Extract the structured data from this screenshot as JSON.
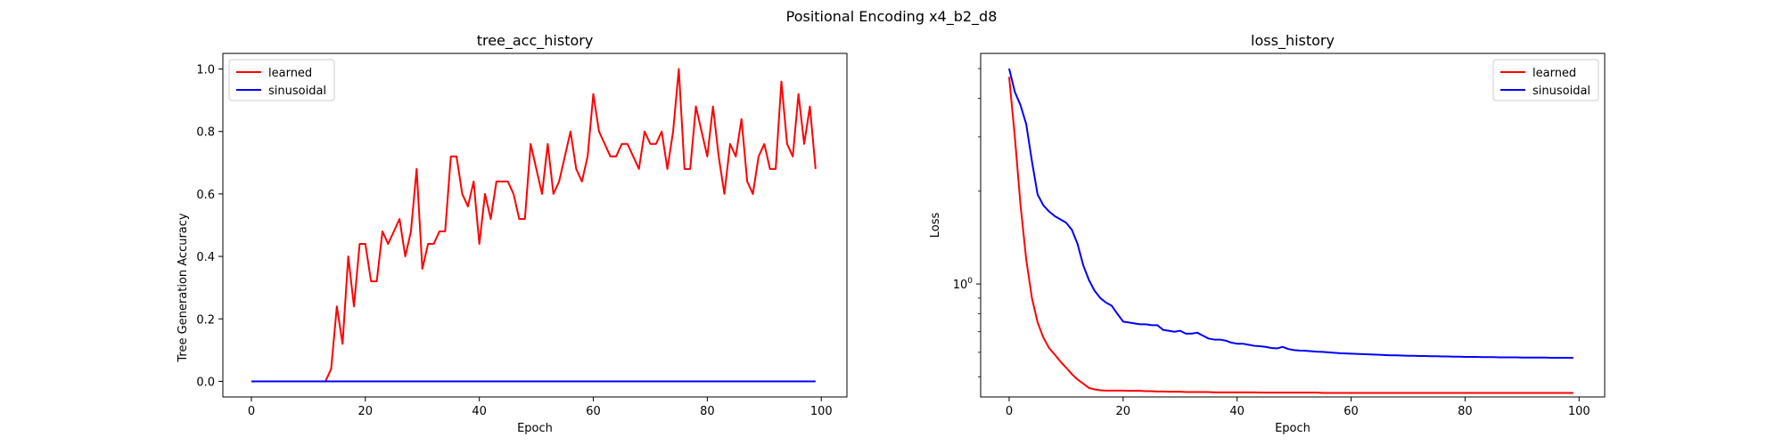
{
  "figure": {
    "suptitle": "Positional Encoding x4_b2_d8"
  },
  "chart_data": [
    {
      "type": "line",
      "title": "tree_acc_history",
      "xlabel": "Epoch",
      "ylabel": "Tree Generation Accuracy",
      "xlim": [
        -5,
        104.5
      ],
      "ylim": [
        -0.05,
        1.05
      ],
      "xticks": [
        0,
        20,
        40,
        60,
        80,
        100
      ],
      "xtick_labels": [
        "0",
        "20",
        "40",
        "60",
        "80",
        "100"
      ],
      "yticks": [
        0.0,
        0.2,
        0.4,
        0.6,
        0.8,
        1.0
      ],
      "ytick_labels": [
        "0.0",
        "0.2",
        "0.4",
        "0.6",
        "0.8",
        "1.0"
      ],
      "yscale": "linear",
      "grid": false,
      "legend": "upper left",
      "series": [
        {
          "name": "learned",
          "color": "#ff0000",
          "x": [
            0,
            1,
            2,
            3,
            4,
            5,
            6,
            7,
            8,
            9,
            10,
            11,
            12,
            13,
            14,
            15,
            16,
            17,
            18,
            19,
            20,
            21,
            22,
            23,
            24,
            25,
            26,
            27,
            28,
            29,
            30,
            31,
            32,
            33,
            34,
            35,
            36,
            37,
            38,
            39,
            40,
            41,
            42,
            43,
            44,
            45,
            46,
            47,
            48,
            49,
            50,
            51,
            52,
            53,
            54,
            55,
            56,
            57,
            58,
            59,
            60,
            61,
            62,
            63,
            64,
            65,
            66,
            67,
            68,
            69,
            70,
            71,
            72,
            73,
            74,
            75,
            76,
            77,
            78,
            79,
            80,
            81,
            82,
            83,
            84,
            85,
            86,
            87,
            88,
            89,
            90,
            91,
            92,
            93,
            94,
            95,
            96,
            97,
            98,
            99
          ],
          "values": [
            0,
            0,
            0,
            0,
            0,
            0,
            0,
            0,
            0,
            0,
            0,
            0,
            0,
            0,
            0.04,
            0.24,
            0.12,
            0.4,
            0.24,
            0.44,
            0.44,
            0.32,
            0.32,
            0.48,
            0.44,
            0.48,
            0.52,
            0.4,
            0.48,
            0.68,
            0.36,
            0.44,
            0.44,
            0.48,
            0.48,
            0.72,
            0.72,
            0.6,
            0.56,
            0.64,
            0.44,
            0.6,
            0.52,
            0.64,
            0.64,
            0.64,
            0.6,
            0.52,
            0.52,
            0.76,
            0.68,
            0.6,
            0.76,
            0.6,
            0.64,
            0.72,
            0.8,
            0.68,
            0.64,
            0.72,
            0.92,
            0.8,
            0.76,
            0.72,
            0.72,
            0.76,
            0.76,
            0.72,
            0.68,
            0.8,
            0.76,
            0.76,
            0.8,
            0.68,
            0.8,
            1.0,
            0.68,
            0.68,
            0.88,
            0.8,
            0.72,
            0.88,
            0.72,
            0.6,
            0.76,
            0.72,
            0.84,
            0.64,
            0.6,
            0.72,
            0.76,
            0.68,
            0.68,
            0.96,
            0.76,
            0.72,
            0.92,
            0.76,
            0.88,
            0.68
          ]
        },
        {
          "name": "sinusoidal",
          "color": "#0000ff",
          "x": [
            0,
            1,
            2,
            3,
            4,
            5,
            6,
            7,
            8,
            9,
            10,
            11,
            12,
            13,
            14,
            15,
            16,
            17,
            18,
            19,
            20,
            21,
            22,
            23,
            24,
            25,
            26,
            27,
            28,
            29,
            30,
            31,
            32,
            33,
            34,
            35,
            36,
            37,
            38,
            39,
            40,
            41,
            42,
            43,
            44,
            45,
            46,
            47,
            48,
            49,
            50,
            51,
            52,
            53,
            54,
            55,
            56,
            57,
            58,
            59,
            60,
            61,
            62,
            63,
            64,
            65,
            66,
            67,
            68,
            69,
            70,
            71,
            72,
            73,
            74,
            75,
            76,
            77,
            78,
            79,
            80,
            81,
            82,
            83,
            84,
            85,
            86,
            87,
            88,
            89,
            90,
            91,
            92,
            93,
            94,
            95,
            96,
            97,
            98,
            99
          ],
          "values": [
            0,
            0,
            0,
            0,
            0,
            0,
            0,
            0,
            0,
            0,
            0,
            0,
            0,
            0,
            0,
            0,
            0,
            0,
            0,
            0,
            0,
            0,
            0,
            0,
            0,
            0,
            0,
            0,
            0,
            0,
            0,
            0,
            0,
            0,
            0,
            0,
            0,
            0,
            0,
            0,
            0,
            0,
            0,
            0,
            0,
            0,
            0,
            0,
            0,
            0,
            0,
            0,
            0,
            0,
            0,
            0,
            0,
            0,
            0,
            0,
            0,
            0,
            0,
            0,
            0,
            0,
            0,
            0,
            0,
            0,
            0,
            0,
            0,
            0,
            0,
            0,
            0,
            0,
            0,
            0,
            0,
            0,
            0,
            0,
            0,
            0,
            0,
            0,
            0,
            0,
            0,
            0,
            0,
            0,
            0,
            0,
            0,
            0,
            0,
            0
          ]
        }
      ]
    },
    {
      "type": "line",
      "title": "loss_history",
      "xlabel": "Epoch",
      "ylabel": "Loss",
      "xlim": [
        -5,
        104.5
      ],
      "ylim": [
        0.43,
        5.6
      ],
      "xticks": [
        0,
        20,
        40,
        60,
        80,
        100
      ],
      "xtick_labels": [
        "0",
        "20",
        "40",
        "60",
        "80",
        "100"
      ],
      "yticks": [
        1.0
      ],
      "ytick_labels": [
        "10^0"
      ],
      "yscale": "log",
      "grid": false,
      "legend": "upper right",
      "series": [
        {
          "name": "learned",
          "color": "#ff0000",
          "x": [
            0,
            1,
            2,
            3,
            4,
            5,
            6,
            7,
            8,
            9,
            10,
            11,
            12,
            13,
            14,
            15,
            16,
            17,
            18,
            19,
            20,
            21,
            22,
            23,
            24,
            25,
            26,
            27,
            28,
            29,
            30,
            31,
            32,
            33,
            34,
            35,
            36,
            37,
            38,
            39,
            40,
            41,
            42,
            43,
            44,
            45,
            46,
            47,
            48,
            49,
            50,
            51,
            52,
            53,
            54,
            55,
            56,
            57,
            58,
            59,
            60,
            61,
            62,
            63,
            64,
            65,
            66,
            67,
            68,
            69,
            70,
            71,
            72,
            73,
            74,
            75,
            76,
            77,
            78,
            79,
            80,
            81,
            82,
            83,
            84,
            85,
            86,
            87,
            88,
            89,
            90,
            91,
            92,
            93,
            94,
            95,
            96,
            97,
            98,
            99
          ],
          "values": [
            4.7,
            3.0,
            1.8,
            1.2,
            0.9,
            0.75,
            0.67,
            0.62,
            0.59,
            0.56,
            0.535,
            0.51,
            0.49,
            0.475,
            0.46,
            0.455,
            0.452,
            0.451,
            0.451,
            0.451,
            0.451,
            0.45,
            0.45,
            0.45,
            0.449,
            0.449,
            0.448,
            0.448,
            0.447,
            0.447,
            0.447,
            0.446,
            0.446,
            0.446,
            0.446,
            0.446,
            0.445,
            0.445,
            0.445,
            0.445,
            0.445,
            0.445,
            0.445,
            0.445,
            0.444,
            0.444,
            0.444,
            0.444,
            0.444,
            0.444,
            0.444,
            0.444,
            0.444,
            0.444,
            0.444,
            0.443,
            0.443,
            0.443,
            0.443,
            0.443,
            0.443,
            0.443,
            0.443,
            0.443,
            0.443,
            0.443,
            0.443,
            0.443,
            0.443,
            0.443,
            0.443,
            0.443,
            0.443,
            0.443,
            0.443,
            0.443,
            0.443,
            0.443,
            0.443,
            0.443,
            0.443,
            0.443,
            0.443,
            0.443,
            0.443,
            0.443,
            0.443,
            0.443,
            0.443,
            0.443,
            0.443,
            0.443,
            0.443,
            0.443,
            0.443,
            0.443,
            0.443,
            0.443,
            0.443,
            0.443
          ]
        },
        {
          "name": "sinusoidal",
          "color": "#0000ff",
          "x": [
            0,
            1,
            2,
            3,
            4,
            5,
            6,
            7,
            8,
            9,
            10,
            11,
            12,
            13,
            14,
            15,
            16,
            17,
            18,
            19,
            20,
            21,
            22,
            23,
            24,
            25,
            26,
            27,
            28,
            29,
            30,
            31,
            32,
            33,
            34,
            35,
            36,
            37,
            38,
            39,
            40,
            41,
            42,
            43,
            44,
            45,
            46,
            47,
            48,
            49,
            50,
            51,
            52,
            53,
            54,
            55,
            56,
            57,
            58,
            59,
            60,
            61,
            62,
            63,
            64,
            65,
            66,
            67,
            68,
            69,
            70,
            71,
            72,
            73,
            74,
            75,
            76,
            77,
            78,
            79,
            80,
            81,
            82,
            83,
            84,
            85,
            86,
            87,
            88,
            89,
            90,
            91,
            92,
            93,
            94,
            95,
            96,
            97,
            98,
            99
          ],
          "values": [
            5.0,
            4.2,
            3.8,
            3.3,
            2.5,
            1.95,
            1.8,
            1.72,
            1.66,
            1.62,
            1.58,
            1.5,
            1.35,
            1.15,
            1.03,
            0.95,
            0.9,
            0.87,
            0.85,
            0.8,
            0.755,
            0.75,
            0.745,
            0.74,
            0.74,
            0.735,
            0.735,
            0.71,
            0.705,
            0.7,
            0.705,
            0.69,
            0.69,
            0.695,
            0.68,
            0.665,
            0.66,
            0.66,
            0.655,
            0.645,
            0.64,
            0.64,
            0.635,
            0.63,
            0.628,
            0.625,
            0.62,
            0.618,
            0.625,
            0.615,
            0.61,
            0.608,
            0.607,
            0.605,
            0.603,
            0.602,
            0.6,
            0.598,
            0.596,
            0.595,
            0.594,
            0.593,
            0.592,
            0.591,
            0.59,
            0.589,
            0.588,
            0.587,
            0.587,
            0.586,
            0.585,
            0.585,
            0.584,
            0.584,
            0.583,
            0.583,
            0.582,
            0.582,
            0.581,
            0.581,
            0.58,
            0.58,
            0.58,
            0.579,
            0.579,
            0.579,
            0.578,
            0.578,
            0.578,
            0.578,
            0.577,
            0.577,
            0.577,
            0.577,
            0.577,
            0.576,
            0.576,
            0.576,
            0.576,
            0.576
          ]
        }
      ]
    }
  ]
}
